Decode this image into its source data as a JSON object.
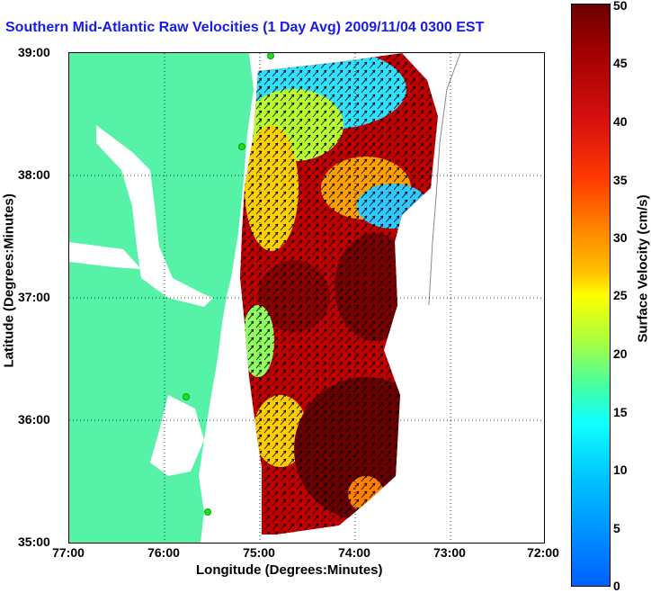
{
  "title": "Southern Mid-Atlantic Raw Velocities (1 Day Avg) 2009/11/04 0300 EST",
  "axes": {
    "xlabel": "Longitude (Degrees:Minutes)",
    "ylabel": "Latitude (Degrees:Minutes)",
    "x_ticks": [
      "77:00",
      "76:00",
      "75:00",
      "74:00",
      "73:00",
      "72:00"
    ],
    "y_ticks": [
      "39:00",
      "38:00",
      "37:00",
      "36:00",
      "35:00"
    ]
  },
  "colorbar": {
    "label": "Surface Velocity (cm/s)",
    "ticks": [
      "50",
      "45",
      "40",
      "35",
      "30",
      "25",
      "20",
      "15",
      "10",
      "5",
      "0"
    ],
    "range": [
      0,
      50
    ]
  },
  "colors": {
    "land": "#55f2a8",
    "title": "#1a1aee"
  }
}
